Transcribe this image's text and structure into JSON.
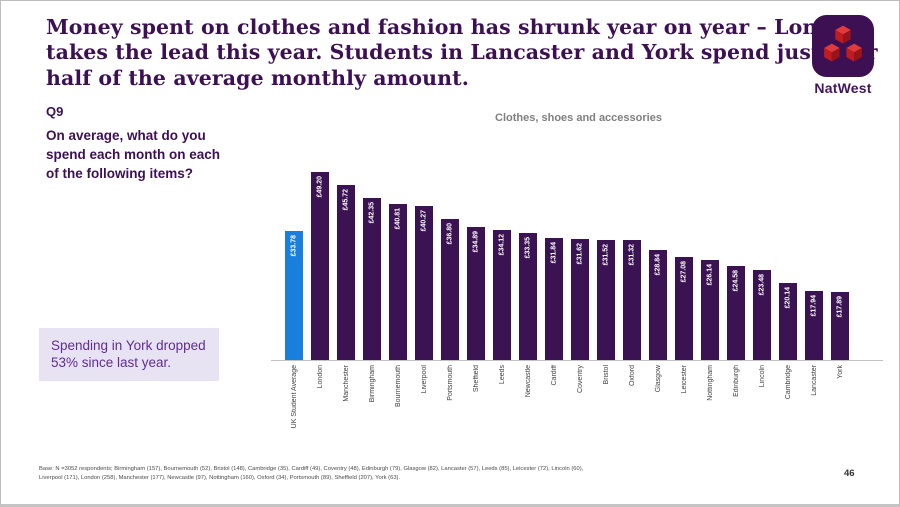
{
  "slide": {
    "title_lines": [
      "Money spent on clothes and fashion has shrunk year on year – London",
      "takes the lead this year. Students in Lancaster and York spend just over",
      "half of the average monthly amount."
    ],
    "question_label": "Q9",
    "question_text": "On average, what do you spend each month on each of the following items?",
    "callout_text": "Spending in York dropped 53% since last year.",
    "footer_line1": "Base: N =3052 respondents; Birmingham (157), Bournemouth (52), Bristol (148), Cambridge (35), Cardiff (49), Coventry (48), Edinburgh (79), Glasgow (82), Lancaster (57), Leeds (85), Leicester (72), Lincoln (60),",
    "footer_line2": "Liverpool (171), London (258), Manchester (177), Newcastle (97), Nottingham (160), Oxford (34), Portsmouth (89), Sheffield (207), York (63).",
    "page_number": "46",
    "logo_word": "NatWest"
  },
  "colors": {
    "brand_purple": "#3C1053",
    "bar_purple": "#3B1353",
    "highlight_blue": "#1A7EDD",
    "logo_red": "#E13A3C",
    "callout_bg": "#E8E3F2",
    "callout_text": "#5F2D93",
    "chart_title_gray": "#7F7F7F"
  },
  "chart_data": {
    "type": "bar",
    "title": "Clothes, shoes and accessories",
    "categories": [
      "UK Student Average",
      "London",
      "Manchester",
      "Birmingham",
      "Bournemouth",
      "Liverpool",
      "Portsmouth",
      "Sheffield",
      "Leeds",
      "Newcastle",
      "Cardiff",
      "Coventry",
      "Bristol",
      "Oxford",
      "Glasgow",
      "Leicester",
      "Nottingham",
      "Edinburgh",
      "Lincoln",
      "Cambridge",
      "Lancaster",
      "York"
    ],
    "values": [
      33.78,
      49.2,
      45.72,
      42.35,
      40.81,
      40.27,
      36.8,
      34.89,
      34.12,
      33.35,
      31.84,
      31.62,
      31.52,
      31.32,
      28.84,
      27.08,
      26.14,
      24.58,
      23.48,
      20.14,
      17.94,
      17.89
    ],
    "labels": [
      "£33.78",
      "£49.20",
      "£45.72",
      "£42.35",
      "£40.81",
      "£40.27",
      "£36.80",
      "£34.89",
      "£34.12",
      "£33.35",
      "£31.84",
      "£31.62",
      "£31.52",
      "£31.32",
      "£28.84",
      "£27.08",
      "£26.14",
      "£24.58",
      "£23.48",
      "£20.14",
      "£17.94",
      "£17.89"
    ],
    "highlight_index": 0,
    "xlabel": "",
    "ylabel": "",
    "ylim": [
      0,
      52
    ],
    "grid": false,
    "legend": "none",
    "value_label_rotation": "bottom-to-top",
    "category_label_rotation": "bottom-to-top"
  }
}
